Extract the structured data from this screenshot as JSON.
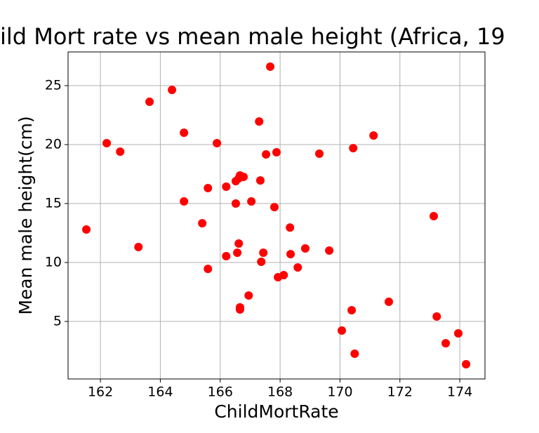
{
  "chart_data": {
    "type": "scatter",
    "title": "ild Mort rate vs mean male height (Africa, 19",
    "x_label": "ChildMortRate",
    "y_label": "Mean male height(cm)",
    "color": "#ff0000",
    "grid": true,
    "xlim": [
      160.92,
      174.84
    ],
    "ylim": [
      0.12,
      27.86
    ],
    "xticks": [
      162,
      164,
      166,
      168,
      170,
      172,
      174
    ],
    "yticks": [
      5,
      10,
      15,
      20,
      25
    ],
    "x": [
      161.53,
      162.21,
      162.66,
      163.27,
      163.64,
      164.39,
      164.79,
      164.79,
      165.4,
      165.59,
      165.59,
      165.89,
      166.2,
      166.2,
      166.52,
      166.52,
      166.57,
      166.62,
      166.62,
      166.66,
      166.78,
      166.66,
      166.66,
      166.95,
      167.04,
      167.3,
      167.34,
      167.37,
      167.44,
      167.53,
      167.67,
      167.81,
      167.88,
      167.93,
      168.12,
      168.33,
      168.35,
      168.59,
      168.84,
      169.31,
      169.64,
      170.06,
      170.39,
      170.44,
      170.49,
      171.12,
      171.63,
      173.13,
      173.23,
      173.53,
      173.95,
      174.21
    ],
    "values": [
      12.8,
      20.12,
      19.4,
      11.31,
      23.63,
      24.64,
      21.01,
      15.18,
      13.33,
      16.31,
      9.46,
      20.12,
      16.43,
      10.54,
      15.0,
      16.9,
      10.83,
      11.61,
      17.14,
      17.38,
      17.26,
      6.19,
      6.01,
      7.2,
      15.18,
      21.96,
      16.96,
      10.06,
      10.83,
      19.17,
      26.61,
      14.7,
      19.35,
      8.75,
      8.93,
      12.96,
      10.71,
      9.58,
      11.19,
      19.23,
      11.01,
      4.23,
      5.95,
      19.7,
      2.26,
      20.77,
      6.67,
      13.93,
      5.42,
      3.15,
      3.99,
      1.37
    ]
  }
}
